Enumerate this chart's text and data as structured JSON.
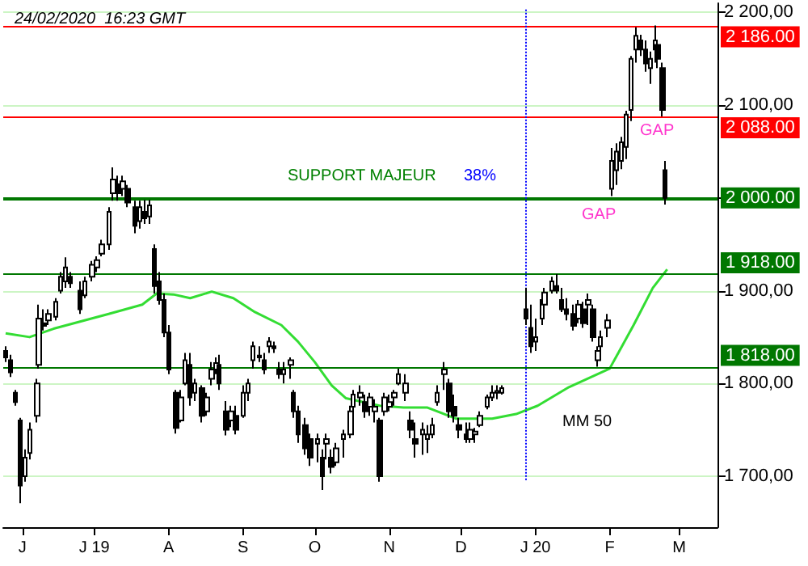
{
  "chart_data": {
    "type": "candlestick",
    "title": "24/02/2020  16:23 GMT",
    "color": "#000000",
    "x": [
      "2019-05-25",
      "2019-05-27",
      "2019-05-29",
      "2019-05-31",
      "2019-06-02",
      "2019-06-04",
      "2019-06-07",
      "2019-06-08",
      "2019-06-10",
      "2019-06-12",
      "2019-06-15",
      "2019-06-17",
      "2019-06-19",
      "2019-06-21",
      "2019-06-25",
      "2019-06-27",
      "2019-06-30",
      "2019-07-02",
      "2019-07-04",
      "2019-07-07",
      "2019-07-09",
      "2019-07-11",
      "2019-07-13",
      "2019-07-15",
      "2019-07-18",
      "2019-07-20",
      "2019-07-22",
      "2019-07-24",
      "2019-07-26",
      "2019-07-28",
      "2019-07-30",
      "2019-08-01",
      "2019-08-04",
      "2019-08-06",
      "2019-08-08",
      "2019-08-10",
      "2019-08-12",
      "2019-08-15",
      "2019-08-17",
      "2019-08-19",
      "2019-08-21",
      "2019-08-22",
      "2019-08-25",
      "2019-08-27",
      "2019-08-29",
      "2019-09-01",
      "2019-09-03",
      "2019-09-05",
      "2019-09-08",
      "2019-09-10",
      "2019-09-12",
      "2019-09-14",
      "2019-09-16",
      "2019-09-18",
      "2019-09-21",
      "2019-09-22",
      "2019-09-24",
      "2019-09-27",
      "2019-09-29",
      "2019-10-02",
      "2019-10-04",
      "2019-10-06",
      "2019-10-08",
      "2019-10-10",
      "2019-10-13",
      "2019-10-16",
      "2019-10-17",
      "2019-10-20",
      "2019-10-22",
      "2019-10-24",
      "2019-10-26",
      "2019-10-28",
      "2019-10-30",
      "2019-11-01",
      "2019-11-03",
      "2019-11-05",
      "2019-11-08",
      "2019-11-10",
      "2019-11-12",
      "2019-11-15",
      "2019-11-17",
      "2019-11-19",
      "2019-11-21",
      "2019-11-24",
      "2019-11-26",
      "2019-11-28",
      "2019-11-30",
      "2019-12-03",
      "2019-12-05",
      "2019-12-07",
      "2019-12-09",
      "2019-12-12",
      "2019-12-14",
      "2019-12-16",
      "2019-12-18",
      "2019-12-28",
      "2019-12-30",
      "2020-01-01",
      "2020-01-04",
      "2020-01-05",
      "2020-01-08",
      "2020-01-10",
      "2020-01-12",
      "2020-01-14",
      "2020-01-17",
      "2020-01-19",
      "2020-01-21",
      "2020-01-23",
      "2020-01-25",
      "2020-01-27",
      "2020-01-28",
      "2020-01-31",
      "2020-02-02",
      "2020-02-04",
      "2020-02-06",
      "2020-02-08",
      "2020-02-10",
      "2020-02-12",
      "2020-02-14",
      "2020-02-16",
      "2020-02-18",
      "2020-02-20",
      "2020-02-21",
      "2020-02-23",
      "2020-02-24"
    ],
    "ohlc": [
      [
        1835,
        1840,
        1823,
        1828
      ],
      [
        1825,
        1831,
        1807,
        1812
      ],
      [
        1790,
        1793,
        1776,
        1780
      ],
      [
        1760,
        1763,
        1671,
        1690
      ],
      [
        1700,
        1729,
        1694,
        1720
      ],
      [
        1725,
        1758,
        1718,
        1750
      ],
      [
        1765,
        1805,
        1758,
        1800
      ],
      [
        1820,
        1885,
        1816,
        1870
      ],
      [
        1865,
        1880,
        1857,
        1862
      ],
      [
        1868,
        1880,
        1863,
        1875
      ],
      [
        1872,
        1892,
        1868,
        1888
      ],
      [
        1900,
        1920,
        1897,
        1915
      ],
      [
        1910,
        1936,
        1903,
        1925
      ],
      [
        1915,
        1920,
        1903,
        1908
      ],
      [
        1900,
        1910,
        1875,
        1880
      ],
      [
        1895,
        1915,
        1892,
        1910
      ],
      [
        1915,
        1932,
        1910,
        1928
      ],
      [
        1925,
        1937,
        1920,
        1933
      ],
      [
        1940,
        1955,
        1937,
        1950
      ],
      [
        1950,
        1990,
        1944,
        1985
      ],
      [
        2005,
        2033,
        1997,
        2020
      ],
      [
        2015,
        2024,
        1997,
        2005
      ],
      [
        2010,
        2024,
        2002,
        2018
      ],
      [
        2010,
        2014,
        1990,
        1995
      ],
      [
        1990,
        1997,
        1962,
        1970
      ],
      [
        1975,
        1997,
        1967,
        1990
      ],
      [
        1985,
        1998,
        1972,
        1978
      ],
      [
        1980,
        1998,
        1972,
        1992
      ],
      [
        1945,
        1950,
        1897,
        1905
      ],
      [
        1910,
        1920,
        1885,
        1890
      ],
      [
        1890,
        1897,
        1850,
        1855
      ],
      [
        1855,
        1863,
        1810,
        1815
      ],
      [
        1790,
        1793,
        1746,
        1752
      ],
      [
        1760,
        1793,
        1758,
        1785
      ],
      [
        1800,
        1833,
        1798,
        1825
      ],
      [
        1820,
        1833,
        1776,
        1785
      ],
      [
        1790,
        1805,
        1781,
        1800
      ],
      [
        1795,
        1798,
        1758,
        1765
      ],
      [
        1770,
        1790,
        1765,
        1785
      ],
      [
        1805,
        1823,
        1798,
        1815
      ],
      [
        1815,
        1828,
        1810,
        1822
      ],
      [
        1820,
        1831,
        1793,
        1800
      ],
      [
        1770,
        1781,
        1744,
        1750
      ],
      [
        1760,
        1776,
        1753,
        1770
      ],
      [
        1765,
        1776,
        1745,
        1750
      ],
      [
        1765,
        1798,
        1763,
        1790
      ],
      [
        1790,
        1805,
        1781,
        1800
      ],
      [
        1825,
        1845,
        1816,
        1840
      ],
      [
        1830,
        1840,
        1823,
        1828
      ],
      [
        1825,
        1833,
        1810,
        1815
      ],
      [
        1840,
        1850,
        1833,
        1845
      ],
      [
        1840,
        1845,
        1833,
        1838
      ],
      [
        1815,
        1823,
        1805,
        1810
      ],
      [
        1810,
        1823,
        1800,
        1815
      ],
      [
        1820,
        1828,
        1805,
        1825
      ],
      [
        1790,
        1793,
        1763,
        1770
      ],
      [
        1770,
        1776,
        1736,
        1745
      ],
      [
        1755,
        1763,
        1723,
        1730
      ],
      [
        1740,
        1746,
        1711,
        1720
      ],
      [
        1735,
        1746,
        1715,
        1740
      ],
      [
        1720,
        1729,
        1685,
        1700
      ],
      [
        1735,
        1746,
        1718,
        1740
      ],
      [
        1720,
        1729,
        1703,
        1710
      ],
      [
        1715,
        1736,
        1711,
        1730
      ],
      [
        1740,
        1750,
        1720,
        1745
      ],
      [
        1745,
        1776,
        1741,
        1770
      ],
      [
        1775,
        1793,
        1770,
        1788
      ],
      [
        1785,
        1798,
        1776,
        1790
      ],
      [
        1780,
        1788,
        1763,
        1770
      ],
      [
        1775,
        1790,
        1765,
        1785
      ],
      [
        1770,
        1783,
        1758,
        1775
      ],
      [
        1760,
        1763,
        1694,
        1700
      ],
      [
        1770,
        1790,
        1765,
        1785
      ],
      [
        1775,
        1788,
        1770,
        1780
      ],
      [
        1785,
        1793,
        1776,
        1790
      ],
      [
        1800,
        1816,
        1798,
        1810
      ],
      [
        1790,
        1810,
        1781,
        1800
      ],
      [
        1760,
        1770,
        1741,
        1750
      ],
      [
        1740,
        1758,
        1720,
        1735
      ],
      [
        1745,
        1758,
        1723,
        1750
      ],
      [
        1740,
        1755,
        1725,
        1745
      ],
      [
        1745,
        1763,
        1741,
        1755
      ],
      [
        1780,
        1798,
        1776,
        1790
      ],
      [
        1810,
        1823,
        1793,
        1815
      ],
      [
        1800,
        1805,
        1763,
        1770
      ],
      [
        1775,
        1788,
        1758,
        1765
      ],
      [
        1755,
        1763,
        1741,
        1750
      ],
      [
        1745,
        1758,
        1736,
        1740
      ],
      [
        1740,
        1758,
        1736,
        1750
      ],
      [
        1745,
        1752,
        1736,
        1748
      ],
      [
        1755,
        1770,
        1753,
        1765
      ],
      [
        1775,
        1788,
        1772,
        1785
      ],
      [
        1785,
        1798,
        1781,
        1790
      ],
      [
        1790,
        1798,
        1783,
        1792
      ],
      [
        1790,
        1798,
        1788,
        1795
      ],
      [
        1880,
        1903,
        1863,
        1870
      ],
      [
        1860,
        1885,
        1833,
        1840
      ],
      [
        1845,
        1870,
        1835,
        1850
      ],
      [
        1870,
        1897,
        1863,
        1890
      ],
      [
        1885,
        1903,
        1880,
        1898
      ],
      [
        1900,
        1915,
        1897,
        1910
      ],
      [
        1905,
        1918,
        1897,
        1900
      ],
      [
        1890,
        1903,
        1877,
        1880
      ],
      [
        1880,
        1892,
        1868,
        1875
      ],
      [
        1875,
        1885,
        1857,
        1862
      ],
      [
        1870,
        1890,
        1865,
        1885
      ],
      [
        1880,
        1888,
        1860,
        1865
      ],
      [
        1885,
        1897,
        1863,
        1890
      ],
      [
        1880,
        1885,
        1845,
        1850
      ],
      [
        1825,
        1840,
        1818,
        1835
      ],
      [
        1840,
        1857,
        1833,
        1850
      ],
      [
        1860,
        1875,
        1850,
        1868
      ],
      [
        2010,
        2054,
        2002,
        2040
      ],
      [
        2030,
        2059,
        2014,
        2050
      ],
      [
        2040,
        2066,
        2031,
        2060
      ],
      [
        2055,
        2094,
        2042,
        2090
      ],
      [
        2095,
        2153,
        2083,
        2150
      ],
      [
        2160,
        2184,
        2146,
        2175
      ],
      [
        2170,
        2176,
        2153,
        2160
      ],
      [
        2160,
        2170,
        2136,
        2145
      ],
      [
        2140,
        2158,
        2123,
        2150
      ],
      [
        2160,
        2186,
        2146,
        2170
      ],
      [
        2165,
        2170,
        2140,
        2150
      ],
      [
        2140,
        2146,
        2088,
        2095
      ],
      [
        2030,
        2040,
        1993,
        2000
      ]
    ],
    "series": [
      {
        "type": "line",
        "color": "#33dd33",
        "x": [
          "2019-05-25",
          "2019-06-04",
          "2019-06-14",
          "2019-07-07",
          "2019-07-21",
          "2019-07-27",
          "2019-08-03",
          "2019-08-10",
          "2019-08-19",
          "2019-08-28",
          "2019-09-06",
          "2019-09-17",
          "2019-09-24",
          "2019-10-01",
          "2019-10-08",
          "2019-10-14",
          "2019-10-28",
          "2019-11-07",
          "2019-11-17",
          "2019-11-29",
          "2019-12-14",
          "2019-12-24",
          "2020-01-02",
          "2020-01-15",
          "2020-02-01",
          "2020-02-11",
          "2020-02-19",
          "2020-02-25"
        ],
        "values": [
          1854,
          1850,
          1859,
          1875,
          1885,
          1897,
          1896,
          1892,
          1899,
          1892,
          1877,
          1863,
          1845,
          1823,
          1798,
          1784,
          1776,
          1774,
          1774,
          1762,
          1762,
          1767,
          1776,
          1796,
          1816,
          1863,
          1903,
          1923
        ]
      }
    ],
    "xlim": [
      "2019-05-24",
      "2020-03-17"
    ],
    "xticks": [
      {
        "value": "2019-06-01",
        "label": "J"
      },
      {
        "value": "2019-07-01",
        "label": "J 19"
      },
      {
        "value": "2019-08-01",
        "label": "A"
      },
      {
        "value": "2019-09-01",
        "label": "S"
      },
      {
        "value": "2019-10-01",
        "label": "O"
      },
      {
        "value": "2019-11-01",
        "label": "N"
      },
      {
        "value": "2019-12-01",
        "label": "D"
      },
      {
        "value": "2020-01-01",
        "label": "J 20"
      },
      {
        "value": "2020-02-01",
        "label": "F"
      },
      {
        "value": "2020-03-01",
        "label": "M"
      }
    ],
    "ylim": [
      1645,
      2210
    ],
    "yticks": [
      {
        "value": 1700,
        "label": "1 700,00"
      },
      {
        "value": 1800,
        "label": "1 800,00"
      },
      {
        "value": 1900,
        "label": "1 900,00"
      },
      {
        "value": 2000,
        "label": null
      },
      {
        "value": 2100,
        "label": "2 100,00"
      },
      {
        "value": 2200,
        "label": "2 200,00"
      }
    ],
    "grid": "y",
    "ref_lines": [
      {
        "axis": "y",
        "value": 2186,
        "label": "2 186.00",
        "color": "#ff0000"
      },
      {
        "axis": "y",
        "value": 2088,
        "label": "2 088.00",
        "color": "#ff0000"
      },
      {
        "axis": "y",
        "value": 2000,
        "label": "2 000.00",
        "color": "#007700"
      },
      {
        "axis": "y",
        "value": 1918,
        "label": "1 918.00",
        "color": "#007700"
      },
      {
        "axis": "y",
        "value": 1818,
        "label": "1 818.00",
        "color": "#007700"
      },
      {
        "axis": "x",
        "value": "2019-12-28",
        "color": "#0000ff",
        "line_style": "dotted"
      }
    ],
    "annotations": [
      "SUPPORT MAJEUR",
      "38%",
      "GAP",
      "GAP",
      "MM 50"
    ]
  }
}
